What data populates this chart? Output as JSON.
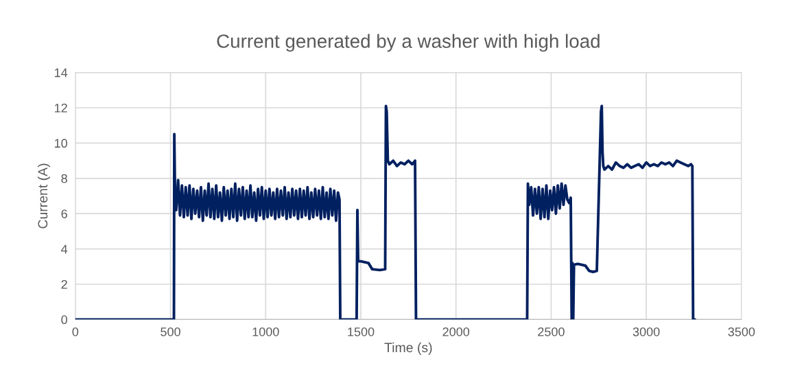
{
  "chart_data": {
    "type": "line",
    "title": "Current generated by a washer with high load",
    "xlabel": "Time (s)",
    "ylabel": "Current (A)",
    "xlim": [
      0,
      3500
    ],
    "xticks": [
      0,
      500,
      1000,
      1500,
      2000,
      2500,
      3000,
      3500
    ],
    "ylim": [
      0,
      14
    ],
    "yticks": [
      0,
      2,
      4,
      6,
      8,
      10,
      12,
      14
    ],
    "grid": true,
    "legend": false,
    "marker": "none",
    "line_style": "solid",
    "series": [
      {
        "color": "#002060",
        "x": [
          0,
          518,
          520,
          524,
          530,
          540,
          550,
          560,
          570,
          580,
          590,
          600,
          610,
          620,
          630,
          640,
          650,
          660,
          670,
          680,
          690,
          700,
          710,
          720,
          730,
          740,
          750,
          760,
          770,
          780,
          790,
          800,
          810,
          820,
          830,
          840,
          850,
          860,
          870,
          880,
          890,
          900,
          910,
          920,
          930,
          940,
          950,
          960,
          970,
          980,
          990,
          1000,
          1010,
          1020,
          1030,
          1040,
          1050,
          1060,
          1070,
          1080,
          1090,
          1100,
          1110,
          1120,
          1130,
          1140,
          1150,
          1160,
          1170,
          1180,
          1190,
          1200,
          1210,
          1220,
          1230,
          1240,
          1250,
          1260,
          1270,
          1280,
          1290,
          1300,
          1310,
          1320,
          1330,
          1340,
          1350,
          1360,
          1370,
          1380,
          1388,
          1392,
          1396,
          1478,
          1482,
          1486,
          1500,
          1520,
          1540,
          1560,
          1600,
          1628,
          1632,
          1636,
          1642,
          1650,
          1670,
          1690,
          1710,
          1730,
          1750,
          1770,
          1785,
          1790,
          2374,
          2378,
          2385,
          2395,
          2405,
          2415,
          2425,
          2435,
          2445,
          2455,
          2465,
          2475,
          2485,
          2495,
          2505,
          2515,
          2525,
          2535,
          2545,
          2555,
          2565,
          2575,
          2585,
          2595,
          2603,
          2608,
          2612,
          2616,
          2620,
          2640,
          2660,
          2680,
          2700,
          2720,
          2740,
          2762,
          2766,
          2770,
          2774,
          2780,
          2800,
          2820,
          2840,
          2860,
          2880,
          2900,
          2920,
          2940,
          2960,
          2980,
          3000,
          3020,
          3040,
          3060,
          3080,
          3100,
          3120,
          3140,
          3160,
          3180,
          3200,
          3220,
          3235,
          3242,
          3246,
          3255
        ],
        "values": [
          0,
          0,
          10.5,
          7.0,
          6.2,
          7.9,
          5.9,
          7.6,
          5.8,
          7.5,
          5.9,
          7.6,
          5.7,
          7.4,
          6.0,
          7.3,
          5.8,
          7.5,
          5.6,
          7.3,
          5.9,
          7.7,
          5.8,
          7.4,
          5.7,
          7.6,
          5.8,
          7.2,
          5.6,
          7.5,
          5.9,
          7.3,
          5.7,
          7.4,
          5.8,
          7.7,
          5.6,
          7.4,
          5.9,
          7.5,
          5.7,
          7.3,
          5.8,
          7.6,
          5.8,
          7.2,
          5.6,
          7.4,
          5.9,
          7.5,
          5.7,
          7.3,
          5.8,
          7.4,
          5.9,
          7.2,
          5.7,
          7.4,
          5.8,
          7.3,
          5.9,
          7.5,
          5.7,
          7.2,
          5.8,
          7.4,
          5.9,
          7.3,
          5.7,
          7.4,
          5.8,
          7.3,
          5.9,
          7.5,
          5.7,
          7.2,
          5.8,
          7.4,
          5.9,
          7.3,
          5.7,
          7.5,
          5.8,
          7.2,
          5.7,
          7.4,
          5.9,
          7.3,
          5.6,
          7.2,
          6.8,
          0,
          0,
          0,
          6.2,
          3.3,
          3.3,
          3.25,
          3.2,
          2.85,
          2.8,
          2.85,
          12.1,
          11.8,
          9.0,
          8.8,
          9.0,
          8.7,
          8.9,
          8.8,
          9.0,
          8.8,
          9.0,
          0,
          0,
          7.7,
          6.5,
          7.5,
          5.9,
          7.4,
          6.0,
          7.5,
          5.7,
          7.4,
          5.8,
          7.6,
          5.7,
          7.3,
          6.2,
          7.5,
          6.0,
          7.6,
          6.3,
          7.7,
          6.5,
          7.6,
          6.8,
          6.6,
          6.9,
          0,
          3.2,
          0,
          3.1,
          3.15,
          3.1,
          3.05,
          2.75,
          2.7,
          2.75,
          11.8,
          12.1,
          9.5,
          8.7,
          8.5,
          8.7,
          8.5,
          8.9,
          8.7,
          8.6,
          8.8,
          8.6,
          8.7,
          8.8,
          8.6,
          8.9,
          8.7,
          8.8,
          8.7,
          8.9,
          8.8,
          8.9,
          8.7,
          9.0,
          8.9,
          8.8,
          8.7,
          8.8,
          8.7,
          0,
          0
        ]
      }
    ]
  }
}
